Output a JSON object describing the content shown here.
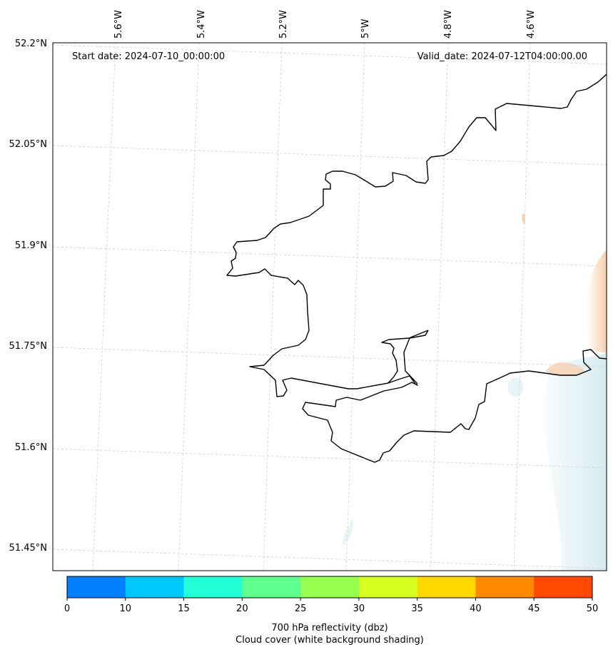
{
  "map": {
    "start_date": "Start date: 2024-07-10_00:00:00",
    "valid_date": "Valid_date: 2024-07-12T04:00:00.00",
    "lon_labels": [
      "5.6°W",
      "5.4°W",
      "5.2°W",
      "5°W",
      "4.8°W",
      "4.6°W"
    ],
    "lat_labels": [
      "52.2°N",
      "52.05°N",
      "51.9°N",
      "51.75°N",
      "51.6°N",
      "51.45°N"
    ],
    "coastline_color": "#000000",
    "gridline_color": "#cccccc"
  },
  "colorbar": {
    "ticks": [
      "0",
      "10",
      "15",
      "20",
      "25",
      "30",
      "35",
      "40",
      "45",
      "50"
    ],
    "colors": [
      "#0080ff",
      "#00c8ff",
      "#22ffd6",
      "#60ff8e",
      "#96ff50",
      "#d6ff22",
      "#ffd800",
      "#ff8a00",
      "#ff4a00"
    ],
    "label_line1": "700 hPa reflectivity (dbz)",
    "label_line2": "Cloud cover (white background shading)"
  }
}
